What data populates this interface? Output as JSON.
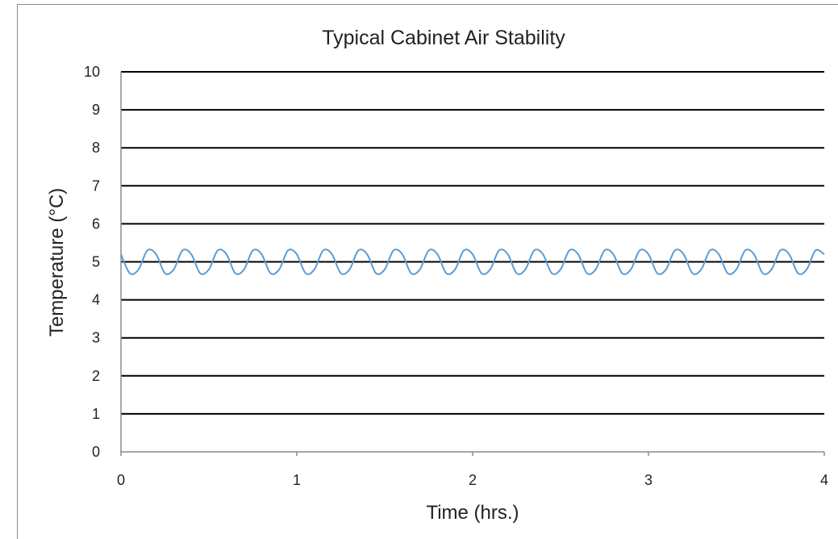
{
  "chart_data": {
    "type": "line",
    "title": "Typical Cabinet Air Stability",
    "xlabel": "Time (hrs.)",
    "ylabel": "Temperature (°C)",
    "xlim": [
      0,
      4
    ],
    "ylim": [
      0,
      10
    ],
    "x_ticks": [
      "0",
      "1",
      "2",
      "3",
      "4"
    ],
    "y_ticks": [
      "0",
      "1",
      "2",
      "3",
      "4",
      "5",
      "6",
      "7",
      "8",
      "9",
      "10"
    ],
    "grid": true,
    "legend": "none",
    "series": [
      {
        "color": "#5b9bd5",
        "x": [
          0,
          0.05,
          0.1,
          0.15,
          0.2,
          0.25,
          0.3,
          0.35,
          0.4,
          0.45,
          0.5,
          0.55,
          0.6,
          0.65,
          0.7,
          0.75,
          0.8,
          0.85,
          0.9,
          0.95,
          1.0,
          1.05,
          1.1,
          1.15,
          1.2,
          1.25,
          1.3,
          1.35,
          1.4,
          1.45,
          1.5,
          1.55,
          1.6,
          1.65,
          1.7,
          1.75,
          1.8,
          1.85,
          1.9,
          1.95,
          2.0,
          2.05,
          2.1,
          2.15,
          2.2,
          2.25,
          2.3,
          2.35,
          2.4,
          2.45,
          2.5,
          2.55,
          2.6,
          2.65,
          2.7,
          2.75,
          2.8,
          2.85,
          2.9,
          2.95,
          3.0,
          3.05,
          3.1,
          3.15,
          3.2,
          3.25,
          3.3,
          3.35,
          3.4,
          3.45,
          3.5,
          3.55,
          3.6,
          3.65,
          3.7,
          3.75,
          3.8,
          3.85,
          3.9,
          3.95,
          4.0
        ],
        "y": [
          5.2,
          4.7,
          4.8,
          5.3,
          5.2,
          4.7,
          4.8,
          5.3,
          5.2,
          4.7,
          4.8,
          5.3,
          5.2,
          4.7,
          4.8,
          5.3,
          5.2,
          4.7,
          4.8,
          5.3,
          5.2,
          4.7,
          4.8,
          5.3,
          5.2,
          4.7,
          4.8,
          5.3,
          5.2,
          4.7,
          4.8,
          5.3,
          5.2,
          4.7,
          4.8,
          5.3,
          5.2,
          4.7,
          4.8,
          5.3,
          5.2,
          4.7,
          4.8,
          5.3,
          5.2,
          4.7,
          4.8,
          5.3,
          5.2,
          4.7,
          4.8,
          5.3,
          5.2,
          4.7,
          4.8,
          5.3,
          5.2,
          4.7,
          4.8,
          5.3,
          5.2,
          4.7,
          4.8,
          5.3,
          5.2,
          4.7,
          4.8,
          5.3,
          5.2,
          4.7,
          4.8,
          5.3,
          5.2,
          4.7,
          4.8,
          5.3,
          5.2,
          4.7,
          4.8,
          5.3,
          5.2
        ]
      }
    ]
  }
}
